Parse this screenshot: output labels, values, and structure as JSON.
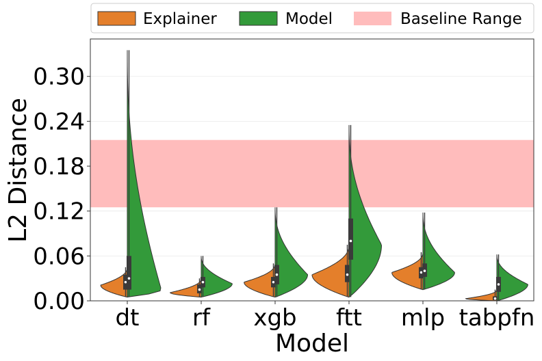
{
  "chart_data": {
    "type": "violin",
    "title": "",
    "xlabel": "Model",
    "ylabel": "L2 Distance",
    "ylim": [
      0.0,
      0.35
    ],
    "yticks": [
      "0.00",
      "0.06",
      "0.12",
      "0.18",
      "0.24",
      "0.30"
    ],
    "ytick_values": [
      0.0,
      0.06,
      0.12,
      0.18,
      0.24,
      0.3
    ],
    "categories": [
      "dt",
      "rf",
      "xgb",
      "ftt",
      "mlp",
      "tabpfn"
    ],
    "grid": "horizontal",
    "legend_placement": "top",
    "baseline_range": {
      "label": "Baseline Range",
      "min": 0.125,
      "max": 0.215,
      "color": "#ffbcbc"
    },
    "series": [
      {
        "name": "Explainer",
        "side": "left",
        "color": "#e47f2b",
        "violins": [
          {
            "category": "dt",
            "min": 0.005,
            "q1": 0.015,
            "median": 0.025,
            "q3": 0.035,
            "max": 0.045,
            "mode": 0.021,
            "max_half_width": 0.36
          },
          {
            "category": "rf",
            "min": 0.005,
            "q1": 0.01,
            "median": 0.015,
            "q3": 0.022,
            "max": 0.03,
            "mode": 0.011,
            "max_half_width": 0.42
          },
          {
            "category": "xgb",
            "min": 0.005,
            "q1": 0.018,
            "median": 0.025,
            "q3": 0.032,
            "max": 0.05,
            "mode": 0.025,
            "max_half_width": 0.42
          },
          {
            "category": "ftt",
            "min": 0.005,
            "q1": 0.025,
            "median": 0.035,
            "q3": 0.048,
            "max": 0.075,
            "mode": 0.035,
            "max_half_width": 0.5
          },
          {
            "category": "mlp",
            "min": 0.015,
            "q1": 0.03,
            "median": 0.038,
            "q3": 0.045,
            "max": 0.065,
            "mode": 0.038,
            "max_half_width": 0.42
          },
          {
            "category": "tabpfn",
            "min": 0.0,
            "q1": 0.001,
            "median": 0.003,
            "q3": 0.006,
            "max": 0.015,
            "mode": 0.003,
            "max_half_width": 0.42
          }
        ]
      },
      {
        "name": "Model",
        "side": "right",
        "color": "#339a3a",
        "violins": [
          {
            "category": "dt",
            "min": 0.005,
            "q1": 0.015,
            "median": 0.03,
            "q3": 0.06,
            "max": 0.335,
            "mode": 0.015,
            "max_half_width": 0.46
          },
          {
            "category": "rf",
            "min": 0.005,
            "q1": 0.018,
            "median": 0.025,
            "q3": 0.032,
            "max": 0.06,
            "mode": 0.023,
            "max_half_width": 0.42
          },
          {
            "category": "xgb",
            "min": 0.005,
            "q1": 0.022,
            "median": 0.035,
            "q3": 0.048,
            "max": 0.125,
            "mode": 0.035,
            "max_half_width": 0.44
          },
          {
            "category": "ftt",
            "min": 0.005,
            "q1": 0.055,
            "median": 0.08,
            "q3": 0.11,
            "max": 0.235,
            "mode": 0.075,
            "max_half_width": 0.44
          },
          {
            "category": "mlp",
            "min": 0.015,
            "q1": 0.032,
            "median": 0.04,
            "q3": 0.05,
            "max": 0.118,
            "mode": 0.038,
            "max_half_width": 0.43
          },
          {
            "category": "tabpfn",
            "min": 0.0,
            "q1": 0.012,
            "median": 0.022,
            "q3": 0.032,
            "max": 0.062,
            "mode": 0.022,
            "max_half_width": 0.42
          }
        ]
      }
    ]
  }
}
